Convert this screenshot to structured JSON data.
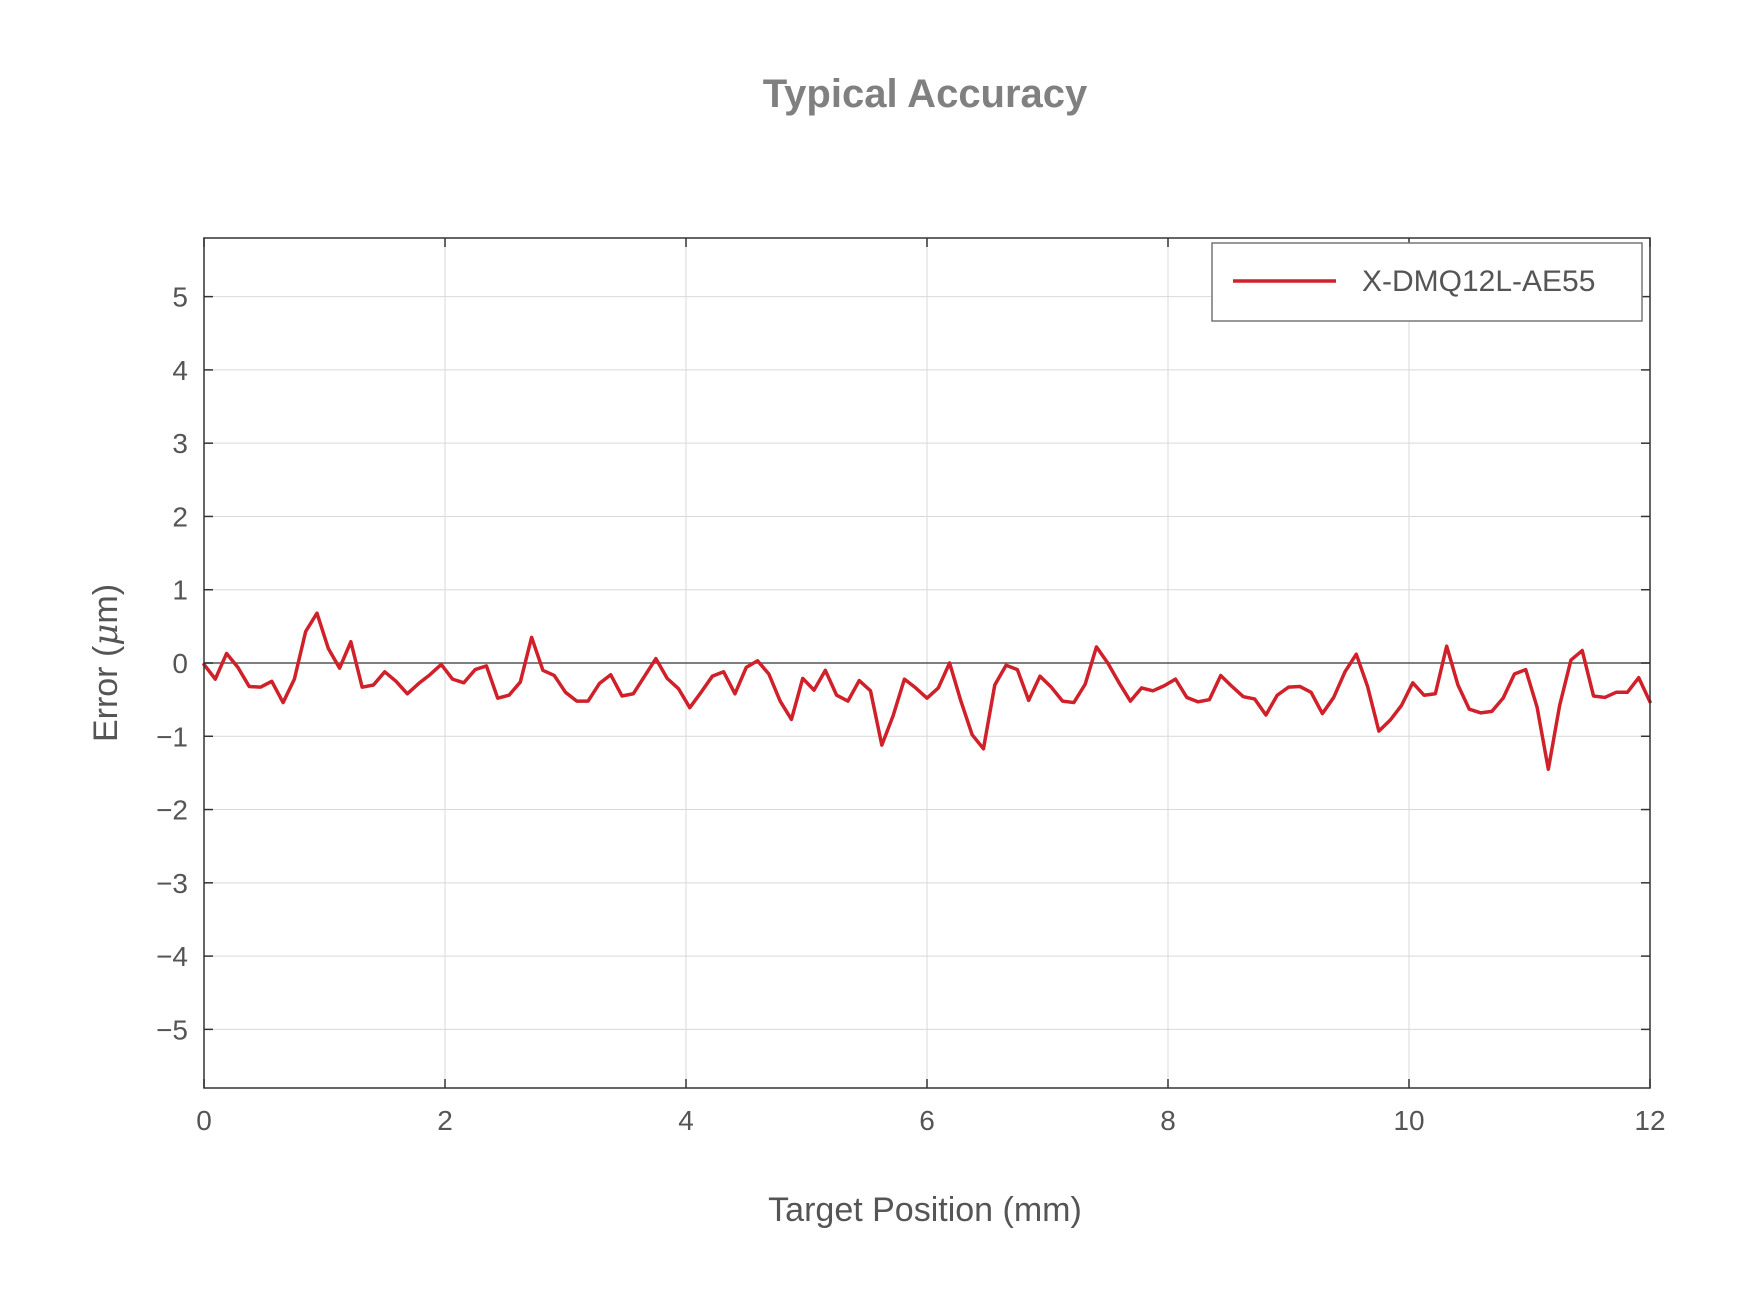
{
  "chart_data": {
    "type": "line",
    "title": "Typical Accuracy",
    "xlabel": "Target Position (mm)",
    "ylabel": "Error (μm)",
    "ylabel_parts": {
      "before": "Error (",
      "unit": "μ",
      "after": "m)"
    },
    "xlim": [
      0,
      12
    ],
    "ylim": [
      -5.8,
      5.8
    ],
    "xticks": [
      0,
      2,
      4,
      6,
      8,
      10,
      12
    ],
    "xtick_labels": [
      "0",
      "2",
      "4",
      "6",
      "8",
      "10",
      "12"
    ],
    "yticks": [
      5,
      4,
      3,
      2,
      1,
      0,
      -1,
      -2,
      -3,
      -4,
      -5
    ],
    "ytick_labels": [
      "5",
      "4",
      "3",
      "2",
      "1",
      "0",
      "−1",
      "−2",
      "−3",
      "−4",
      "−5"
    ],
    "grid": true,
    "legend_position": "top-right",
    "series": [
      {
        "name": "X-DMQ12L-AE55",
        "color": "#d0202a",
        "x_start": 0,
        "x_step": 0.09375,
        "values": [
          -0.02,
          -0.22,
          0.13,
          -0.06,
          -0.32,
          -0.33,
          -0.25,
          -0.54,
          -0.22,
          0.43,
          0.68,
          0.2,
          -0.07,
          0.29,
          -0.33,
          -0.3,
          -0.12,
          -0.25,
          -0.42,
          -0.28,
          -0.16,
          -0.02,
          -0.22,
          -0.27,
          -0.09,
          -0.04,
          -0.48,
          -0.44,
          -0.26,
          0.35,
          -0.1,
          -0.17,
          -0.4,
          -0.52,
          -0.52,
          -0.28,
          -0.16,
          -0.45,
          -0.42,
          -0.18,
          0.06,
          -0.21,
          -0.35,
          -0.61,
          -0.4,
          -0.18,
          -0.12,
          -0.42,
          -0.06,
          0.03,
          -0.15,
          -0.52,
          -0.77,
          -0.21,
          -0.37,
          -0.1,
          -0.44,
          -0.52,
          -0.24,
          -0.38,
          -1.12,
          -0.72,
          -0.22,
          -0.34,
          -0.48,
          -0.34,
          0.0,
          -0.52,
          -0.98,
          -1.17,
          -0.3,
          -0.03,
          -0.09,
          -0.51,
          -0.18,
          -0.33,
          -0.52,
          -0.54,
          -0.29,
          0.22,
          0.0,
          -0.27,
          -0.52,
          -0.34,
          -0.38,
          -0.31,
          -0.22,
          -0.47,
          -0.53,
          -0.5,
          -0.17,
          -0.32,
          -0.46,
          -0.49,
          -0.71,
          -0.44,
          -0.33,
          -0.32,
          -0.4,
          -0.69,
          -0.47,
          -0.12,
          0.12,
          -0.32,
          -0.93,
          -0.78,
          -0.58,
          -0.27,
          -0.44,
          -0.42,
          0.23,
          -0.3,
          -0.63,
          -0.68,
          -0.66,
          -0.48,
          -0.15,
          -0.09,
          -0.6,
          -1.45,
          -0.58,
          0.04,
          0.17,
          -0.45,
          -0.47,
          -0.4,
          -0.4,
          -0.2,
          -0.53
        ]
      }
    ]
  }
}
